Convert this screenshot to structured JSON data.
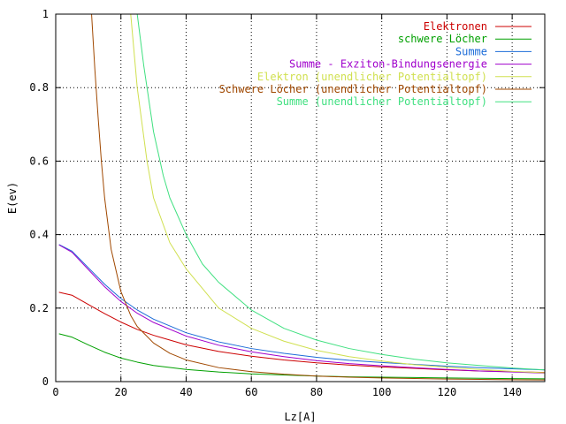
{
  "chart_data": {
    "type": "line",
    "title": "",
    "xlabel": "Lz[A]",
    "ylabel": "E(ev)",
    "xlim": [
      0,
      150
    ],
    "ylim": [
      0,
      1
    ],
    "xticks": [
      0,
      20,
      40,
      60,
      80,
      100,
      120,
      140
    ],
    "yticks": [
      0,
      0.2,
      0.4,
      0.6,
      0.8,
      1
    ],
    "ytick_labels": [
      "0",
      "0.2",
      "0.4",
      "0.6",
      "0.8",
      "1"
    ],
    "grid": true,
    "legend_position": "top-right",
    "series": [
      {
        "name": "Elektronen",
        "color": "#cc0000",
        "x": [
          1,
          5,
          10,
          15,
          20,
          25,
          30,
          40,
          50,
          60,
          70,
          80,
          90,
          100,
          110,
          120,
          130,
          140,
          150
        ],
        "y": [
          0.243,
          0.235,
          0.21,
          0.185,
          0.162,
          0.142,
          0.126,
          0.1,
          0.082,
          0.069,
          0.059,
          0.051,
          0.045,
          0.04,
          0.036,
          0.032,
          0.029,
          0.027,
          0.025
        ]
      },
      {
        "name": "schwere Löcher",
        "color": "#00a000",
        "x": [
          1,
          5,
          10,
          15,
          20,
          25,
          30,
          40,
          50,
          60,
          70,
          80,
          90,
          100,
          110,
          120,
          130,
          140,
          150
        ],
        "y": [
          0.13,
          0.121,
          0.1,
          0.08,
          0.064,
          0.053,
          0.044,
          0.033,
          0.026,
          0.021,
          0.018,
          0.015,
          0.013,
          0.012,
          0.011,
          0.01,
          0.009,
          0.008,
          0.0075
        ]
      },
      {
        "name": "Summe",
        "color": "#1c6cd8",
        "x": [
          1,
          5,
          10,
          15,
          20,
          25,
          30,
          40,
          50,
          60,
          70,
          80,
          90,
          100,
          110,
          120,
          130,
          140,
          150
        ],
        "y": [
          0.373,
          0.355,
          0.31,
          0.265,
          0.226,
          0.195,
          0.17,
          0.133,
          0.108,
          0.09,
          0.077,
          0.066,
          0.058,
          0.052,
          0.047,
          0.042,
          0.038,
          0.035,
          0.032
        ]
      },
      {
        "name": "Summe - Exziton-Bindungsenergie",
        "color": "#a000cc",
        "x": [
          1,
          5,
          10,
          15,
          20,
          25,
          30,
          40,
          50,
          60,
          70,
          80,
          90,
          100,
          110,
          120,
          130,
          140,
          150
        ],
        "y": [
          0.372,
          0.352,
          0.305,
          0.258,
          0.218,
          0.186,
          0.161,
          0.124,
          0.099,
          0.081,
          0.068,
          0.057,
          0.049,
          0.043,
          0.038,
          0.033,
          0.029,
          0.026,
          0.023
        ]
      },
      {
        "name": "Elektron (unendlicher Potentialtopf)",
        "color": "#d0e050",
        "x": [
          23,
          25,
          28,
          30,
          35,
          40,
          50,
          60,
          70,
          80,
          90,
          100,
          110,
          120,
          130,
          140,
          150
        ],
        "y": [
          1.0,
          0.8,
          0.6,
          0.5,
          0.378,
          0.307,
          0.2,
          0.145,
          0.11,
          0.085,
          0.068,
          0.056,
          0.046,
          0.039,
          0.033,
          0.028,
          0.024
        ]
      },
      {
        "name": "Schwere Löcher (unendlicher Potentialtopf)",
        "color": "#a04800",
        "x": [
          11,
          12,
          13,
          14,
          15,
          17,
          20,
          23,
          25,
          30,
          35,
          40,
          50,
          60,
          70,
          80,
          90,
          100,
          120,
          140,
          150
        ],
        "y": [
          1.0,
          0.85,
          0.72,
          0.6,
          0.5,
          0.36,
          0.245,
          0.18,
          0.15,
          0.105,
          0.077,
          0.059,
          0.038,
          0.027,
          0.02,
          0.015,
          0.012,
          0.01,
          0.007,
          0.005,
          0.0045
        ]
      },
      {
        "name": "Summe (unendlicher Potentialtopf)",
        "color": "#40e080",
        "x": [
          25,
          27,
          30,
          33,
          35,
          40,
          45,
          50,
          60,
          70,
          80,
          90,
          100,
          110,
          120,
          130,
          140,
          150
        ],
        "y": [
          1.0,
          0.86,
          0.68,
          0.56,
          0.5,
          0.4,
          0.32,
          0.27,
          0.195,
          0.145,
          0.113,
          0.09,
          0.074,
          0.061,
          0.051,
          0.044,
          0.037,
          0.032
        ]
      }
    ]
  }
}
